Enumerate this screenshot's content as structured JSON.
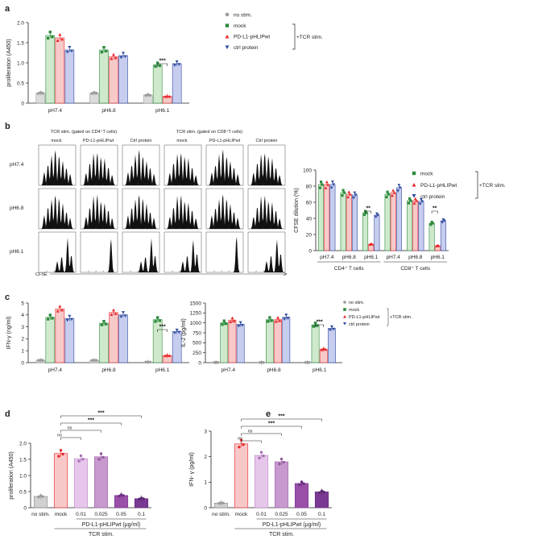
{
  "colors": {
    "no_stim": "#9a9a9a",
    "mock": "#2e8b3e",
    "pdl1": "#e8262b",
    "ctrl": "#2f4a9e",
    "mock_fill": "#cfe9cc",
    "pdl1_fill": "#f7c9c9",
    "ctrl_fill": "#c6cdee",
    "nostim_fill": "#dcdcdc",
    "d_bars": [
      "#d0d0d0",
      "#f8c8c8",
      "#e7c6ec",
      "#c799cf",
      "#9a4fa8",
      "#7a3a94"
    ],
    "hist": "#111111"
  },
  "panel_a": {
    "letter": "a",
    "legend": [
      "no stim.",
      "mock",
      "PD-L1-pHLIPwt",
      "ctrl protein"
    ],
    "legend_bracket": "+TCR stim.",
    "chart_data": {
      "type": "bar",
      "categories": [
        "pH7.4",
        "pH6.8",
        "pH6.1"
      ],
      "ylabel": "proliferation (A450)",
      "ylim": [
        0,
        2.0
      ],
      "yticks": [
        "0",
        "0.5",
        "1.0",
        "1.5",
        "2.0"
      ],
      "series": [
        {
          "name": "no stim.",
          "values": [
            0.25,
            0.25,
            0.2
          ]
        },
        {
          "name": "mock",
          "values": [
            1.68,
            1.32,
            0.95
          ]
        },
        {
          "name": "PD-L1-pHLIPwt",
          "values": [
            1.62,
            1.15,
            0.17
          ]
        },
        {
          "name": "ctrl protein",
          "values": [
            1.32,
            1.18,
            0.98
          ]
        }
      ],
      "annotations": [
        "***"
      ]
    }
  },
  "panel_b": {
    "letter": "b",
    "group1_title": "TCR stim. (gated on CD4⁺T cells)",
    "group2_title": "TCR stim. (gated on CD8⁺T cells)",
    "columns": [
      "mock",
      "PD-L1-pHLIPwt",
      "Ctrl protein"
    ],
    "rows": [
      "pH7.4",
      "pH6.8",
      "pH6.1"
    ],
    "xlabel": "CFSE",
    "legend": [
      "mock",
      "PD-L1-pHLIPwt",
      "ctrl protein"
    ],
    "legend_bracket": "+TCR stim.",
    "chart_data": {
      "type": "bar",
      "categories": [
        "pH7.4",
        "pH6.8",
        "pH6.1",
        "pH7.4",
        "pH6.8",
        "pH6.1"
      ],
      "groups": [
        "CD4⁺ T cells",
        "CD8⁺ T cells"
      ],
      "ylabel": "CFSE dilution (%)",
      "ylim": [
        0,
        100
      ],
      "yticks": [
        "0",
        "20",
        "40",
        "60",
        "80",
        "100"
      ],
      "series": [
        {
          "name": "mock",
          "values": [
            82,
            72,
            47,
            70,
            62,
            34
          ]
        },
        {
          "name": "PD-L1-pHLIPwt",
          "values": [
            82,
            70,
            8,
            72,
            62,
            6
          ]
        },
        {
          "name": "ctrl protein",
          "values": [
            82,
            69,
            44,
            78,
            61,
            37
          ]
        }
      ],
      "annotations": [
        "**",
        "**"
      ]
    }
  },
  "panel_c": {
    "letter": "c",
    "legend": [
      "no stim.",
      "mock",
      "PD-L1-pHLIPwt",
      "ctrl protein"
    ],
    "legend_bracket": "+TCR stim.",
    "chart_data": [
      {
        "type": "bar",
        "categories": [
          "pH7.4",
          "pH6.8",
          "pH6.1"
        ],
        "ylabel": "IFN-γ (ng/ml)",
        "ylim": [
          0,
          5
        ],
        "yticks": [
          "0",
          "1",
          "2",
          "3",
          "4",
          "5"
        ],
        "series": [
          {
            "name": "no stim.",
            "values": [
              0.2,
              0.2,
              0.05
            ]
          },
          {
            "name": "mock",
            "values": [
              3.8,
              3.3,
              3.6
            ]
          },
          {
            "name": "PD-L1-pHLIPwt",
            "values": [
              4.5,
              4.2,
              0.6
            ]
          },
          {
            "name": "ctrl protein",
            "values": [
              3.7,
              4.0,
              2.6
            ]
          }
        ],
        "annotations": [
          "***"
        ]
      },
      {
        "type": "bar",
        "categories": [
          "pH7.4",
          "pH6.8",
          "pH6.1"
        ],
        "ylabel": "IL-2 (pg/ml)",
        "ylim": [
          0,
          1500
        ],
        "yticks": [
          "0",
          "250",
          "500",
          "750",
          "1000",
          "1250",
          "1500"
        ],
        "series": [
          {
            "name": "no stim.",
            "values": [
              5,
              5,
              5
            ]
          },
          {
            "name": "mock",
            "values": [
              1000,
              1080,
              950
            ]
          },
          {
            "name": "PD-L1-pHLIPwt",
            "values": [
              1070,
              1080,
              340
            ]
          },
          {
            "name": "ctrl protein",
            "values": [
              960,
              1140,
              860
            ]
          }
        ],
        "annotations": [
          "***"
        ]
      }
    ]
  },
  "panel_d": {
    "letter": "d",
    "bracket_label": "PD-L1-pHLIPwt (μg/ml)",
    "tcr_label": "TCR stim.",
    "chart_data": {
      "type": "bar",
      "categories": [
        "no stim.",
        "mock",
        "0.01",
        "0.025",
        "0.05",
        "0.1"
      ],
      "ylabel": "proliferation (A450)",
      "ylim": [
        0,
        2.0
      ],
      "yticks": [
        "0",
        "0.5",
        "1.0",
        "1.5",
        "2.0"
      ],
      "values": [
        0.35,
        1.68,
        1.52,
        1.58,
        0.38,
        0.28
      ],
      "annotations": [
        "***",
        "***",
        "ns",
        "ns"
      ]
    }
  },
  "panel_e": {
    "letter": "e",
    "bracket_label": "PD-L1-pHLIPwt (μg/ml)",
    "tcr_label": "TCR stim.",
    "chart_data": {
      "type": "bar",
      "categories": [
        "no stim.",
        "mock",
        "0.01",
        "0.025",
        "0.05",
        "0.1"
      ],
      "ylabel": "IFN- γ (pg/ml)",
      "ylim": [
        0,
        3
      ],
      "yticks": [
        "0",
        "1",
        "2",
        "3"
      ],
      "values": [
        0.18,
        2.5,
        2.05,
        1.8,
        0.95,
        0.62
      ],
      "annotations": [
        "***",
        "***",
        "ns",
        "ns"
      ]
    }
  }
}
